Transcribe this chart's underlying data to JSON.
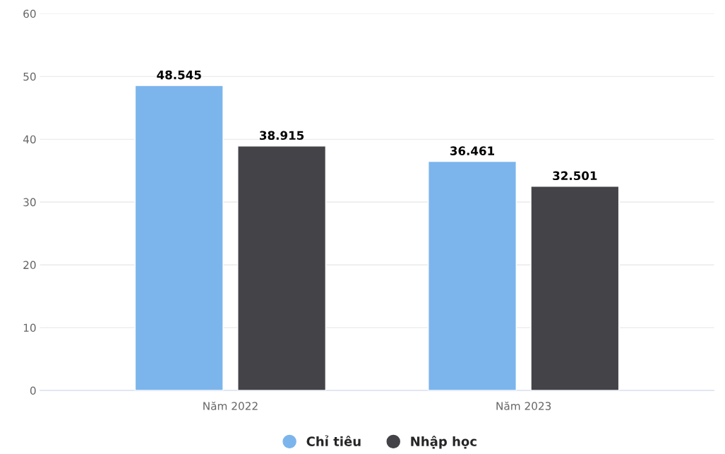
{
  "chart_data": {
    "type": "bar",
    "categories": [
      "Năm 2022",
      "Năm 2023"
    ],
    "series": [
      {
        "name": "Chỉ tiêu",
        "color": "#7cb5ec",
        "values": [
          48.545,
          36.461
        ]
      },
      {
        "name": "Nhập học",
        "color": "#434348",
        "values": [
          38.915,
          32.501
        ]
      }
    ],
    "ylim": [
      0,
      60
    ],
    "yticks": [
      0,
      10,
      20,
      30,
      40,
      50,
      60
    ],
    "grid": "y",
    "legend": "bottom",
    "data_labels": true,
    "marker": "circle"
  }
}
